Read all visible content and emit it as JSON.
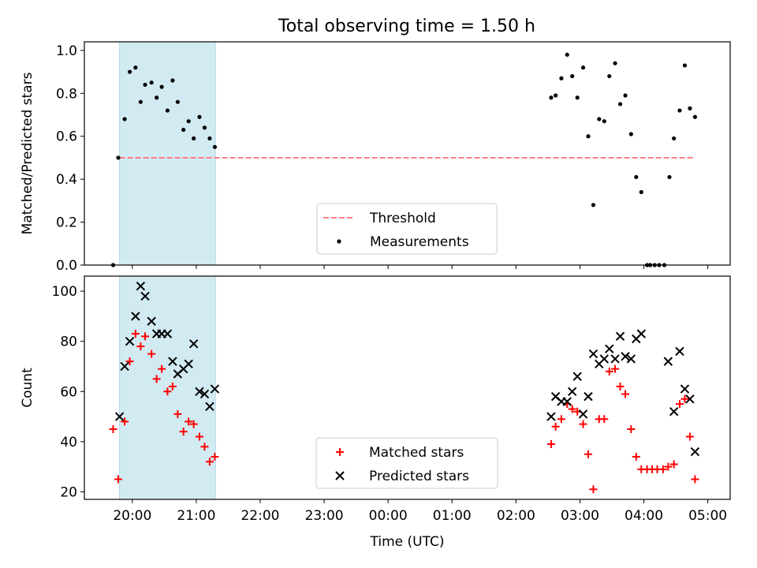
{
  "title": "Total observing time = 1.50 h",
  "colors": {
    "threshold": "#ff7f7f",
    "measurement": "#000000",
    "matched": "#ff0000",
    "predicted": "#000000",
    "shade": "#add8e6"
  },
  "chart_data": [
    {
      "type": "scatter",
      "ylabel": "Matched/Predicted stars",
      "xlim": [
        19.25,
        29.35
      ],
      "ylim": [
        0.0,
        1.04
      ],
      "yticks": [
        "0.0",
        "0.2",
        "0.4",
        "0.6",
        "0.8",
        "1.0"
      ],
      "shaded_x": [
        19.8,
        21.3
      ],
      "threshold": {
        "name": "Threshold",
        "y": 0.5,
        "x": [
          19.8,
          28.8
        ]
      },
      "series": [
        {
          "name": "Measurements",
          "x": [
            19.7,
            19.78,
            19.88,
            19.96,
            20.05,
            20.13,
            20.2,
            20.3,
            20.38,
            20.46,
            20.55,
            20.63,
            20.71,
            20.8,
            20.88,
            20.96,
            21.05,
            21.13,
            21.21,
            21.29,
            26.55,
            26.62,
            26.71,
            26.8,
            26.88,
            26.96,
            27.05,
            27.13,
            27.21,
            27.3,
            27.38,
            27.46,
            27.55,
            27.63,
            27.71,
            27.8,
            27.88,
            27.96,
            28.05,
            28.1,
            28.17,
            28.24,
            28.32,
            28.4,
            28.47,
            28.56,
            28.64,
            28.72,
            28.8
          ],
          "y": [
            0.0,
            0.5,
            0.68,
            0.9,
            0.92,
            0.76,
            0.84,
            0.85,
            0.78,
            0.83,
            0.72,
            0.86,
            0.76,
            0.63,
            0.67,
            0.59,
            0.69,
            0.64,
            0.59,
            0.55,
            0.78,
            0.79,
            0.87,
            0.98,
            0.88,
            0.78,
            0.92,
            0.6,
            0.28,
            0.68,
            0.67,
            0.88,
            0.94,
            0.75,
            0.79,
            0.61,
            0.41,
            0.34,
            0.0,
            0.0,
            0.0,
            0.0,
            0.0,
            0.41,
            0.59,
            0.72,
            0.93,
            0.73,
            0.69
          ]
        }
      ],
      "legend": [
        "Threshold",
        "Measurements"
      ],
      "legend_position": "lower-center"
    },
    {
      "type": "scatter",
      "ylabel": "Count",
      "xlabel": "Time (UTC)",
      "xlim": [
        19.25,
        29.35
      ],
      "ylim": [
        17,
        106
      ],
      "yticks": [
        "20",
        "40",
        "60",
        "80",
        "100"
      ],
      "xticks": [
        {
          "value": 20,
          "label": "20:00"
        },
        {
          "value": 21,
          "label": "21:00"
        },
        {
          "value": 22,
          "label": "22:00"
        },
        {
          "value": 23,
          "label": "23:00"
        },
        {
          "value": 24,
          "label": "00:00"
        },
        {
          "value": 25,
          "label": "01:00"
        },
        {
          "value": 26,
          "label": "02:00"
        },
        {
          "value": 27,
          "label": "03:00"
        },
        {
          "value": 28,
          "label": "04:00"
        },
        {
          "value": 29,
          "label": "05:00"
        }
      ],
      "shaded_x": [
        19.8,
        21.3
      ],
      "series": [
        {
          "name": "Matched stars",
          "marker": "plus",
          "x": [
            19.7,
            19.78,
            19.88,
            19.96,
            20.05,
            20.13,
            20.2,
            20.3,
            20.38,
            20.46,
            20.55,
            20.63,
            20.71,
            20.8,
            20.88,
            20.96,
            21.05,
            21.13,
            21.21,
            21.29,
            26.55,
            26.62,
            26.71,
            26.8,
            26.88,
            26.96,
            27.05,
            27.13,
            27.21,
            27.3,
            27.38,
            27.46,
            27.55,
            27.63,
            27.71,
            27.8,
            27.88,
            27.96,
            28.05,
            28.13,
            28.21,
            28.3,
            28.38,
            28.47,
            28.56,
            28.64,
            28.72,
            28.8
          ],
          "y": [
            45,
            25,
            48,
            72,
            83,
            78,
            82,
            75,
            65,
            69,
            60,
            62,
            51,
            44,
            48,
            47,
            42,
            38,
            32,
            34,
            39,
            46,
            49,
            55,
            53,
            52,
            47,
            35,
            21,
            49,
            49,
            68,
            69,
            62,
            59,
            45,
            34,
            29,
            29,
            29,
            29,
            29,
            30,
            31,
            55,
            57,
            42,
            25
          ]
        },
        {
          "name": "Predicted stars",
          "marker": "x",
          "x": [
            19.8,
            19.88,
            19.96,
            20.05,
            20.13,
            20.2,
            20.3,
            20.38,
            20.46,
            20.55,
            20.63,
            20.71,
            20.8,
            20.88,
            20.96,
            21.05,
            21.13,
            21.21,
            21.29,
            26.55,
            26.62,
            26.71,
            26.8,
            26.88,
            26.96,
            27.05,
            27.13,
            27.21,
            27.3,
            27.38,
            27.46,
            27.55,
            27.63,
            27.71,
            27.8,
            27.88,
            27.96,
            28.38,
            28.47,
            28.56,
            28.64,
            28.72,
            28.8
          ],
          "y": [
            50,
            70,
            80,
            90,
            102,
            98,
            88,
            83,
            83,
            83,
            72,
            67,
            69,
            71,
            79,
            60,
            59,
            54,
            61,
            50,
            58,
            56,
            56,
            60,
            66,
            51,
            58,
            75,
            71,
            73,
            77,
            73,
            82,
            74,
            73,
            81,
            83,
            72,
            52,
            76,
            61,
            57,
            36
          ]
        }
      ],
      "legend": [
        "Matched stars",
        "Predicted stars"
      ],
      "legend_position": "lower-center"
    }
  ]
}
